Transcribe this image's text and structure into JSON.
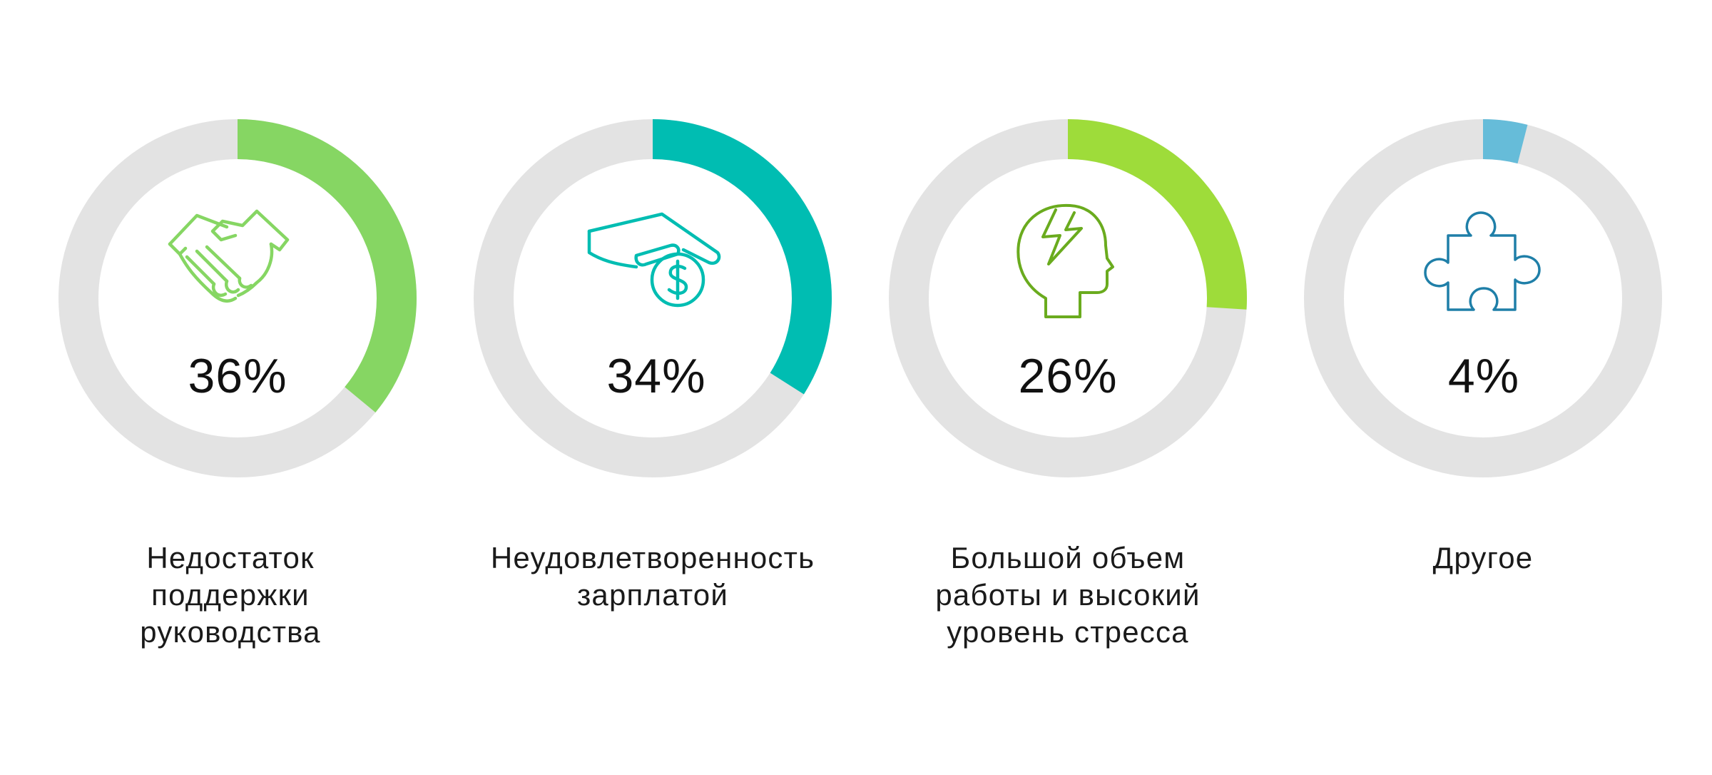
{
  "chart_data": {
    "type": "pie",
    "style": "donut",
    "track_color": "#e3e3e3",
    "items": [
      {
        "label": "Недостаток\nподдержки\nруководства",
        "value": 36,
        "display": "36%",
        "color": "#86d663",
        "icon": "handshake-icon",
        "icon_color": "#86d663"
      },
      {
        "label": "Неудовлетворенность\nзарплатой",
        "value": 34,
        "display": "34%",
        "color": "#00bdb2",
        "icon": "hand-with-coin-icon",
        "icon_color": "#00bdb2"
      },
      {
        "label": "Большой объем\nработы и высокий\nуровень стресса",
        "value": 26,
        "display": "26%",
        "color": "#9edc3a",
        "icon": "head-lightning-icon",
        "icon_color": "#6aab1e"
      },
      {
        "label": "Другое",
        "value": 4,
        "display": "4%",
        "color": "#66bcd9",
        "icon": "puzzle-icon",
        "icon_color": "#1f7fa8"
      }
    ]
  }
}
